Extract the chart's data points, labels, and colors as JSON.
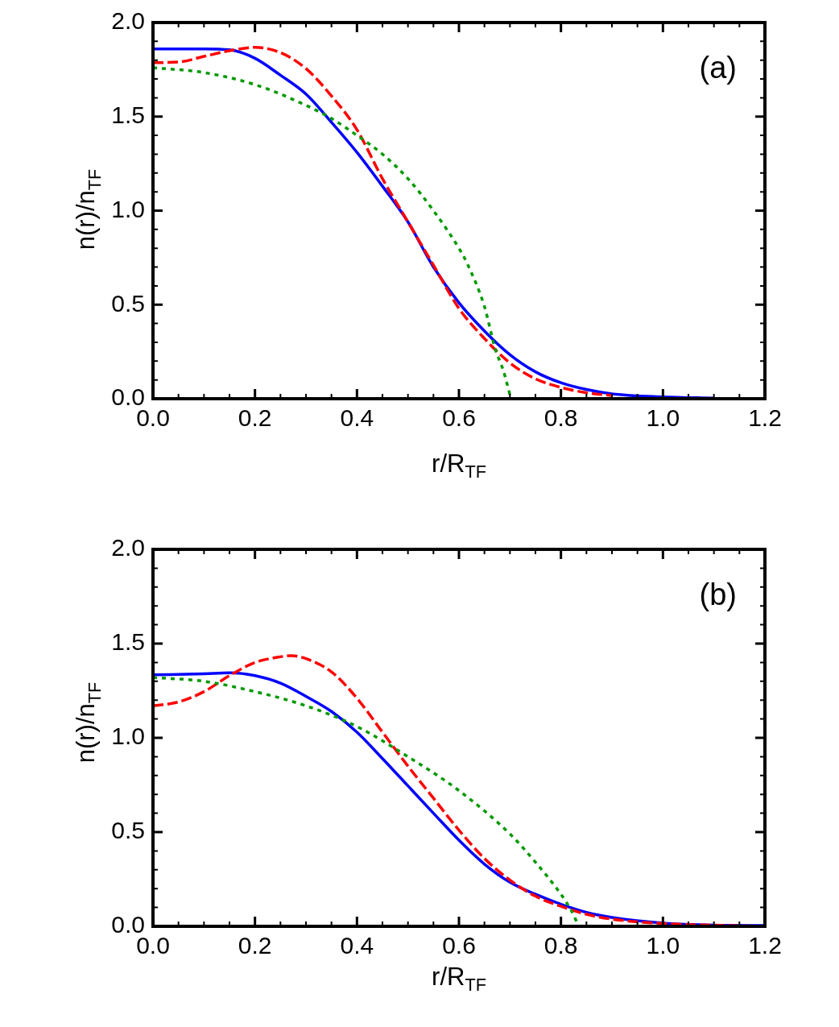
{
  "chart_data": [
    {
      "type": "line",
      "xlabel": "r/R$_{TF}$",
      "ylabel": "n(r)/n$_{TF}$",
      "annotations": [
        "(a)"
      ],
      "legend": false,
      "grid": false,
      "marker": "none",
      "xlim": [
        0,
        1.2
      ],
      "xticks": [
        {
          "value": 0,
          "label": "0.0"
        },
        {
          "value": 0.2,
          "label": "0.2"
        },
        {
          "value": 0.4,
          "label": "0.4"
        },
        {
          "value": 0.6,
          "label": "0.6"
        },
        {
          "value": 0.8,
          "label": "0.8"
        },
        {
          "value": 1,
          "label": "1.0"
        },
        {
          "value": 1.2,
          "label": "1.2"
        }
      ],
      "ylim": [
        0,
        2
      ],
      "yticks": [
        {
          "value": 0,
          "label": "0.0"
        },
        {
          "value": 0.5,
          "label": "0.5"
        },
        {
          "value": 1,
          "label": "1.0"
        },
        {
          "value": 1.5,
          "label": "1.5"
        },
        {
          "value": 2,
          "label": "2.0"
        }
      ],
      "series": [
        {
          "color": "#0000ff",
          "line_style": "solid",
          "x": [
            0,
            0.1,
            0.15,
            0.2,
            0.25,
            0.3,
            0.35,
            0.4,
            0.45,
            0.5,
            0.55,
            0.6,
            0.65,
            0.7,
            0.75,
            0.8,
            0.85,
            0.9,
            1,
            1.1
          ],
          "values": [
            1.86,
            1.86,
            1.855,
            1.81,
            1.72,
            1.62,
            1.47,
            1.31,
            1.13,
            0.94,
            0.7,
            0.51,
            0.36,
            0.234,
            0.143,
            0.085,
            0.049,
            0.026,
            0.01,
            0.003
          ]
        },
        {
          "color": "#ff0000",
          "line_style": "dashed",
          "x": [
            0,
            0.05,
            0.1,
            0.15,
            0.2,
            0.25,
            0.3,
            0.35,
            0.4,
            0.45,
            0.5,
            0.55,
            0.6,
            0.65,
            0.7,
            0.75,
            0.8,
            0.85,
            0.9
          ],
          "values": [
            1.787,
            1.79,
            1.82,
            1.85,
            1.868,
            1.84,
            1.755,
            1.61,
            1.43,
            1.17,
            0.94,
            0.71,
            0.48,
            0.32,
            0.19,
            0.106,
            0.06,
            0.032,
            0.017
          ]
        },
        {
          "color": "#009900",
          "line_style": "dotted",
          "x": [
            0,
            0.1,
            0.2,
            0.3,
            0.35,
            0.4,
            0.45,
            0.5,
            0.55,
            0.6,
            0.616,
            0.65,
            0.671,
            0.687,
            0.702
          ],
          "values": [
            1.76,
            1.734,
            1.67,
            1.56,
            1.49,
            1.4,
            1.3,
            1.17,
            1.0,
            0.8,
            0.72,
            0.49,
            0.266,
            0.15,
            0
          ]
        }
      ]
    },
    {
      "type": "line",
      "xlabel": "r/R$_{TF}$",
      "ylabel": "n(r)/n$_{TF}$",
      "annotations": [
        "(b)"
      ],
      "legend": false,
      "grid": false,
      "marker": "none",
      "xlim": [
        0,
        1.2
      ],
      "xticks": [
        {
          "value": 0,
          "label": "0.0"
        },
        {
          "value": 0.2,
          "label": "0.2"
        },
        {
          "value": 0.4,
          "label": "0.4"
        },
        {
          "value": 0.6,
          "label": "0.6"
        },
        {
          "value": 0.8,
          "label": "0.8"
        },
        {
          "value": 1,
          "label": "1.0"
        },
        {
          "value": 1.2,
          "label": "1.2"
        }
      ],
      "ylim": [
        0,
        2
      ],
      "yticks": [
        {
          "value": 0,
          "label": "0.0"
        },
        {
          "value": 0.5,
          "label": "0.5"
        },
        {
          "value": 1,
          "label": "1.0"
        },
        {
          "value": 1.5,
          "label": "1.5"
        },
        {
          "value": 2,
          "label": "2.0"
        }
      ],
      "series": [
        {
          "color": "#0000ff",
          "line_style": "solid",
          "x": [
            0,
            0.1,
            0.15,
            0.2,
            0.25,
            0.3,
            0.35,
            0.4,
            0.45,
            0.5,
            0.55,
            0.6,
            0.65,
            0.7,
            0.75,
            0.8,
            0.85,
            0.9,
            1,
            1.1,
            1.2
          ],
          "values": [
            1.334,
            1.34,
            1.345,
            1.33,
            1.29,
            1.22,
            1.14,
            1.03,
            0.89,
            0.745,
            0.6,
            0.457,
            0.33,
            0.234,
            0.17,
            0.117,
            0.074,
            0.047,
            0.017,
            0.006,
            0.004
          ]
        },
        {
          "color": "#ff0000",
          "line_style": "dashed",
          "x": [
            0,
            0.05,
            0.1,
            0.15,
            0.2,
            0.25,
            0.27,
            0.3,
            0.35,
            0.4,
            0.45,
            0.5,
            0.55,
            0.6,
            0.65,
            0.7,
            0.75,
            0.8,
            0.85,
            0.9,
            1,
            1.2
          ],
          "values": [
            1.17,
            1.19,
            1.245,
            1.33,
            1.4,
            1.43,
            1.436,
            1.42,
            1.35,
            1.21,
            1.03,
            0.85,
            0.68,
            0.51,
            0.36,
            0.245,
            0.16,
            0.106,
            0.064,
            0.038,
            0.015,
            0
          ]
        },
        {
          "color": "#009900",
          "line_style": "dotted",
          "x": [
            0,
            0.1,
            0.2,
            0.3,
            0.4,
            0.5,
            0.6,
            0.7,
            0.75,
            0.8,
            0.82,
            0.835
          ],
          "values": [
            1.32,
            1.3,
            1.245,
            1.17,
            1.06,
            0.9,
            0.72,
            0.49,
            0.34,
            0.17,
            0.085,
            0
          ]
        }
      ]
    }
  ]
}
